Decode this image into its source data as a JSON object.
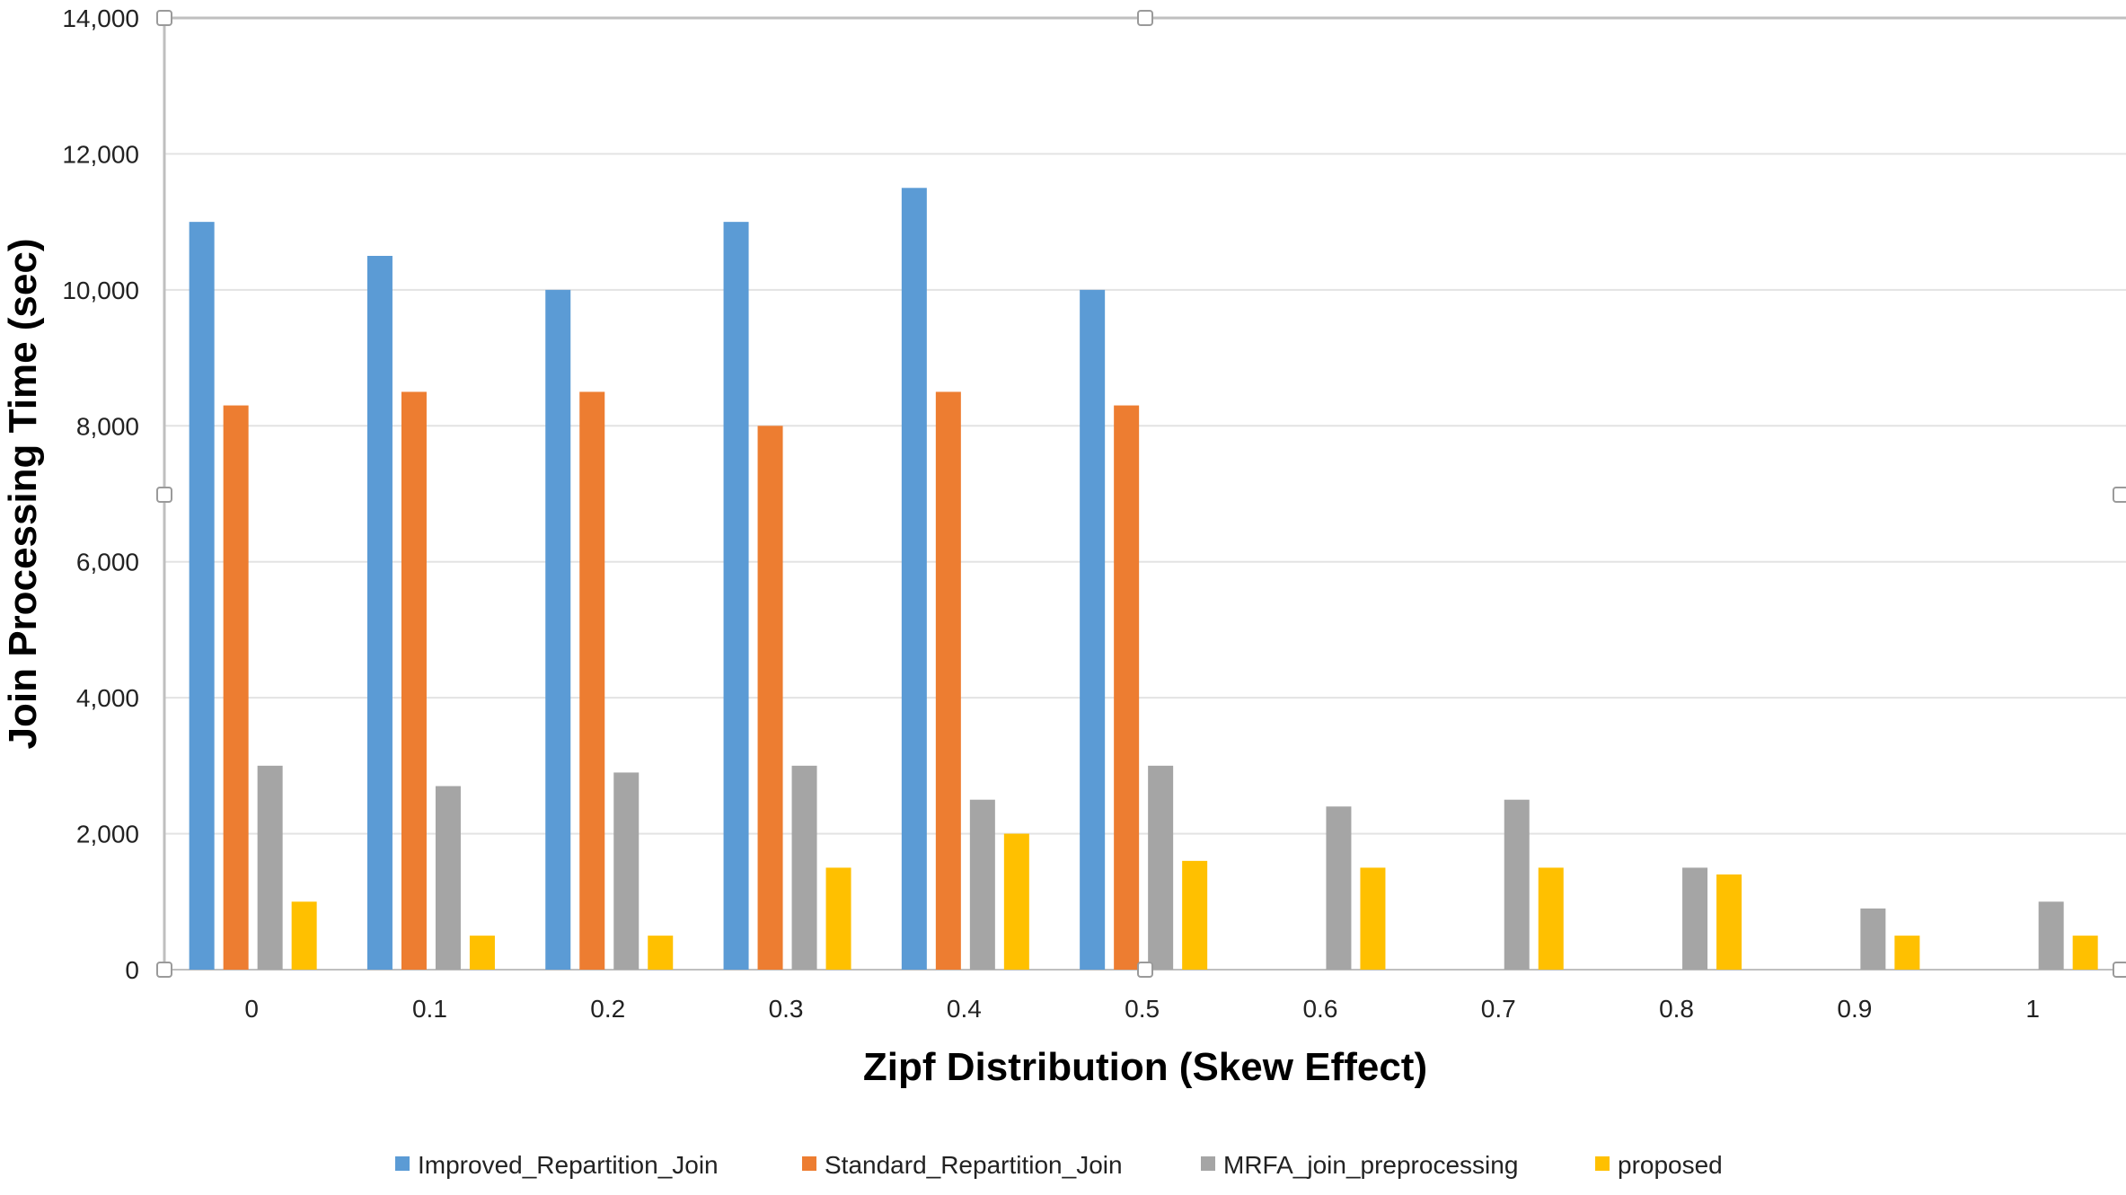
{
  "chart_data": {
    "type": "bar",
    "xlabel": "Zipf Distribution (Skew Effect)",
    "ylabel": "Join Processing Time (sec)",
    "ylim": [
      0,
      14000
    ],
    "yticks": [
      0,
      2000,
      4000,
      6000,
      8000,
      10000,
      12000,
      14000
    ],
    "ytick_labels": [
      "0",
      "2,000",
      "4,000",
      "6,000",
      "8,000",
      "10,000",
      "12,000",
      "14,000"
    ],
    "categories": [
      "0",
      "0.1",
      "0.2",
      "0.3",
      "0.4",
      "0.5",
      "0.6",
      "0.7",
      "0.8",
      "0.9",
      "1"
    ],
    "grid": true,
    "legend_position": "bottom",
    "series": [
      {
        "name": "Improved_Repartition_Join",
        "color": "#5B9BD5",
        "values": [
          11000,
          10500,
          10000,
          11000,
          11500,
          10000,
          null,
          null,
          null,
          null,
          null
        ]
      },
      {
        "name": "Standard_Repartition_Join",
        "color": "#ED7D31",
        "values": [
          8300,
          8500,
          8500,
          8000,
          8500,
          8300,
          null,
          null,
          null,
          null,
          null
        ]
      },
      {
        "name": "MRFA_join_preprocessing",
        "color": "#A5A5A5",
        "values": [
          3000,
          2700,
          2900,
          3000,
          2500,
          3000,
          2400,
          2500,
          1500,
          900,
          1000
        ]
      },
      {
        "name": "proposed",
        "color": "#FFC000",
        "values": [
          1000,
          500,
          500,
          1500,
          2000,
          1600,
          1500,
          1500,
          1400,
          500,
          500
        ]
      }
    ]
  }
}
